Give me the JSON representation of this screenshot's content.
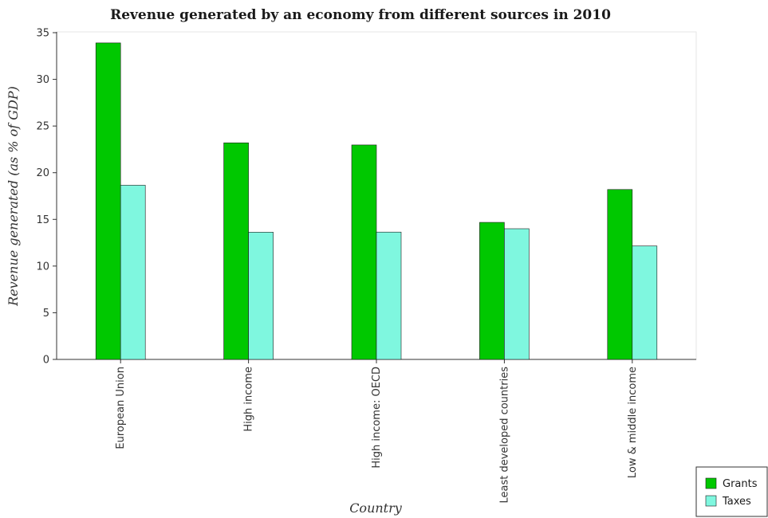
{
  "chart_data": {
    "type": "bar",
    "title": "Revenue generated by an economy from different sources in 2010",
    "xlabel": "Country",
    "ylabel": "Revenue generated (as % of GDP)",
    "categories": [
      "European Union",
      "High income",
      "High income: OECD",
      "Least developed countries",
      "Low & middle income"
    ],
    "series": [
      {
        "name": "Grants",
        "color": "#00c800",
        "values": [
          33.9,
          23.2,
          22.97,
          14.68,
          18.2
        ]
      },
      {
        "name": "Taxes",
        "color": "#7ff7df",
        "values": [
          18.66,
          13.63,
          13.64,
          14.0,
          12.15
        ]
      }
    ],
    "yticks": [
      0,
      5,
      10,
      15,
      20,
      25,
      30,
      35
    ],
    "ylim": [
      0,
      35
    ],
    "grid": false,
    "legend_position": "bottom-right"
  }
}
